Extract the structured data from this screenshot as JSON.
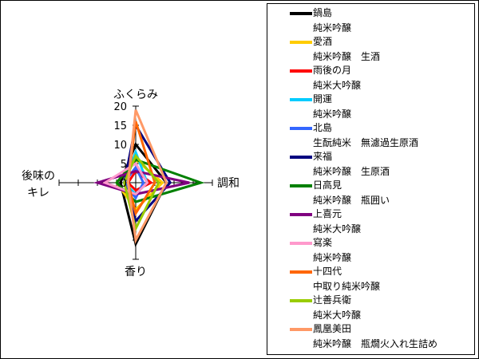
{
  "chart_data": {
    "type": "radar",
    "axes": [
      {
        "id": "top",
        "lines": [
          "ふくらみ"
        ]
      },
      {
        "id": "right",
        "lines": [
          "調和"
        ]
      },
      {
        "id": "bottom",
        "lines": [
          "香り"
        ]
      },
      {
        "id": "left",
        "lines": [
          "後味の",
          "キレ"
        ]
      }
    ],
    "rlim": [
      0,
      20
    ],
    "ticks": [
      "0",
      "5",
      "10",
      "15",
      "20"
    ],
    "tick_values": [
      0,
      5,
      10,
      15,
      20
    ],
    "series": [
      {
        "name": "鍋島",
        "sub": "純米吟醸",
        "color": "#000000",
        "values": [
          10,
          8,
          16,
          4
        ]
      },
      {
        "name": "愛酒",
        "sub": "純米吟醸　生酒",
        "color": "#FFCC00",
        "values": [
          6,
          7,
          7,
          5
        ]
      },
      {
        "name": "雨後の月",
        "sub": "純米大吟醸",
        "color": "#FF0000",
        "values": [
          3,
          4,
          2,
          2
        ]
      },
      {
        "name": "開運",
        "sub": "純米吟醸",
        "color": "#00CCFF",
        "values": [
          8,
          3,
          3,
          3
        ]
      },
      {
        "name": "北島",
        "sub": "生酛純米　無濾過生原酒",
        "color": "#3366FF",
        "values": [
          4,
          2,
          4,
          3
        ]
      },
      {
        "name": "来福",
        "sub": "純米吟醸　生原酒",
        "color": "#000080",
        "values": [
          15,
          9,
          10,
          3
        ]
      },
      {
        "name": "日高見",
        "sub": "純米吟醸　瓶囲い",
        "color": "#008000",
        "values": [
          6,
          17,
          5,
          5
        ]
      },
      {
        "name": "上喜元",
        "sub": "純米大吟醸",
        "color": "#800080",
        "values": [
          3,
          14,
          3,
          10
        ]
      },
      {
        "name": "寫楽",
        "sub": "純米吟醸",
        "color": "#FF99CC",
        "values": [
          5,
          3,
          3,
          8
        ]
      },
      {
        "name": "十四代",
        "sub": "中取り純米吟醸",
        "color": "#FF6600",
        "values": [
          16,
          5,
          8,
          2
        ]
      },
      {
        "name": "辻善兵衛",
        "sub": "純米大吟醸",
        "color": "#99CC00",
        "values": [
          7,
          6,
          12,
          3
        ]
      },
      {
        "name": "鳳凰美田",
        "sub": "純米吟醸　瓶燗火入れ生詰め",
        "color": "#FF9966",
        "values": [
          19,
          8,
          15,
          2
        ]
      }
    ],
    "legend_position": "right"
  }
}
